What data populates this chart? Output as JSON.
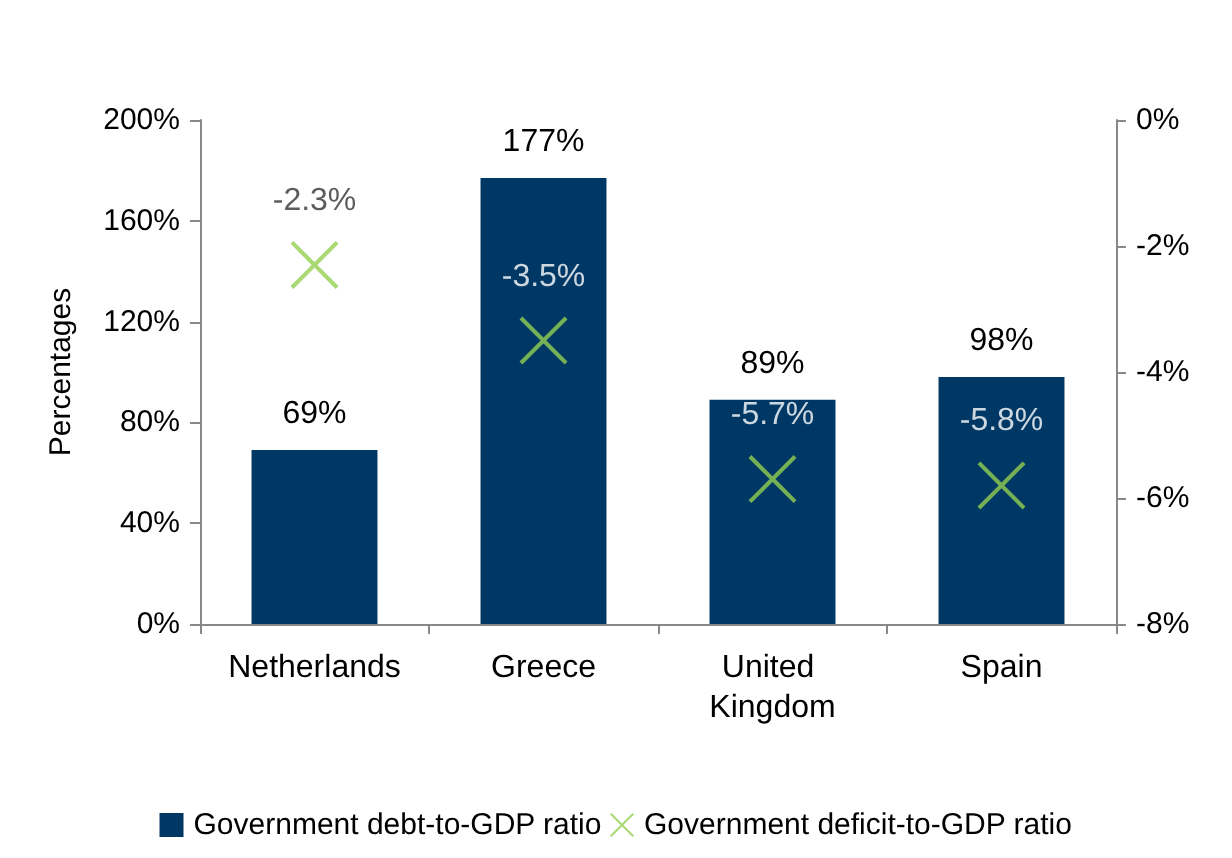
{
  "chart_data": {
    "type": "bar",
    "ylabel": "Percentages",
    "categories": [
      "Netherlands",
      "Greece",
      "United Kingdom",
      "Spain"
    ],
    "series": [
      {
        "name": "Government debt-to-GDP ratio",
        "type": "bar",
        "color": "#003865",
        "values": [
          69,
          177,
          89,
          98
        ],
        "value_labels": [
          "69%",
          "177%",
          "89%",
          "98%"
        ]
      },
      {
        "name": "Government deficit-to-GDP ratio",
        "type": "scatter",
        "axis": "y2",
        "marker": "cross",
        "color": "#92d050",
        "x": [
          "Netherlands",
          "Greece",
          "United Kingdom",
          "Spain"
        ],
        "values": [
          -2.3,
          -3.5,
          -5.7,
          -5.8
        ],
        "value_labels": [
          "-2.3%",
          "-3.5%",
          "-5.7%",
          "-5.8%"
        ]
      }
    ],
    "ylim": [
      0,
      200
    ],
    "yticks": [
      {
        "value": 0,
        "label": "0%"
      },
      {
        "value": 40,
        "label": "40%"
      },
      {
        "value": 80,
        "label": "80%"
      },
      {
        "value": 120,
        "label": "120%"
      },
      {
        "value": 160,
        "label": "160%"
      },
      {
        "value": 200,
        "label": "200%"
      }
    ],
    "y2lim": [
      -8,
      0
    ],
    "y2ticks": [
      {
        "value": -8,
        "label": "-8%"
      },
      {
        "value": -6,
        "label": "-6%"
      },
      {
        "value": -4,
        "label": "-4%"
      },
      {
        "value": -2,
        "label": "-2%"
      },
      {
        "value": 0,
        "label": "0%"
      }
    ],
    "grid": false,
    "legend": "bottom"
  }
}
